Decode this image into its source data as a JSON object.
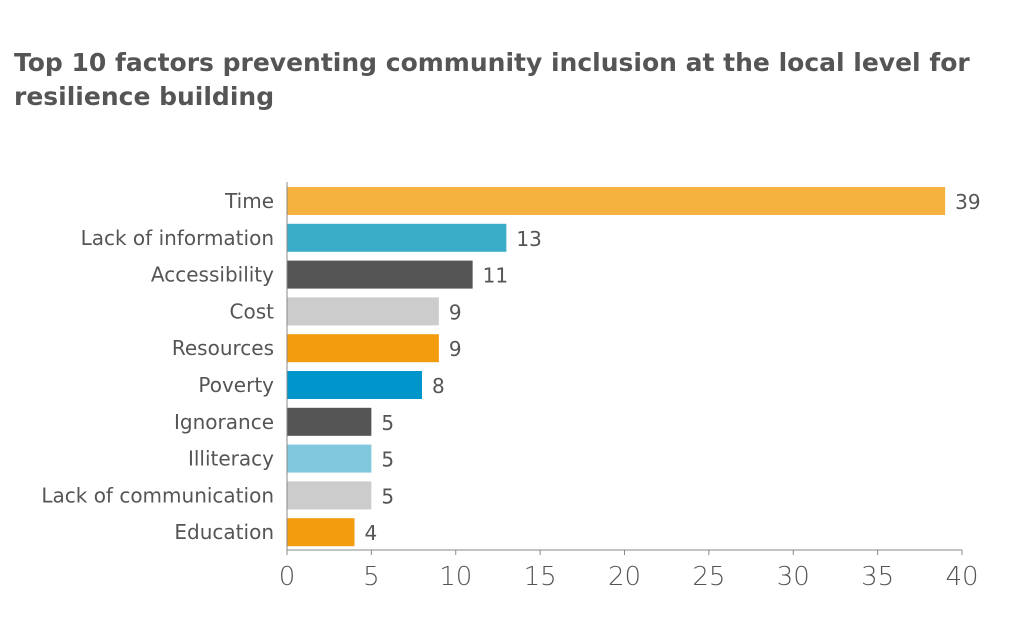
{
  "chart_data": {
    "type": "bar",
    "orientation": "horizontal",
    "title": "Top 10 factors preventing community inclusion at the local level for resilience building",
    "categories": [
      "Time",
      "Lack of information",
      "Accessibility",
      "Cost",
      "Resources",
      "Poverty",
      "Ignorance",
      "Illiteracy",
      "Lack of communication",
      "Education"
    ],
    "values": [
      39,
      13,
      11,
      9,
      9,
      8,
      5,
      5,
      5,
      4
    ],
    "colors": [
      "#F5B23E",
      "#3AADC9",
      "#555555",
      "#CCCCCC",
      "#F39C0E",
      "#0096CC",
      "#555555",
      "#82C8DD",
      "#CCCCCC",
      "#F39C0E"
    ],
    "xlim": [
      0,
      40
    ],
    "xticks": [
      0,
      5,
      10,
      15,
      20,
      25,
      30,
      35,
      40
    ],
    "xlabel": "",
    "ylabel": "",
    "grid": false,
    "legend": "none"
  }
}
